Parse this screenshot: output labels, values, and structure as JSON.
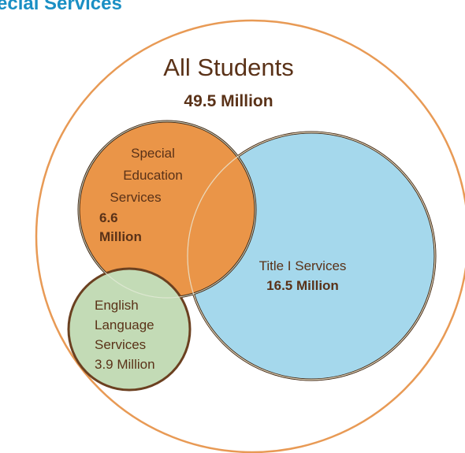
{
  "header": {
    "title": "ecial Services"
  },
  "diagram": {
    "all_students": {
      "label": "All Students",
      "value": "49.5 Million",
      "color": "#e89a55"
    },
    "special_education": {
      "label_lines": [
        "Special",
        "Education",
        "Services"
      ],
      "value_lines": [
        "6.6",
        "Million"
      ],
      "color": "#ea9548"
    },
    "title_one": {
      "label": "Title I Services",
      "value": "16.5 Million",
      "color": "#a5d8ec"
    },
    "english_language": {
      "label_lines": [
        "English",
        "Language",
        "Services"
      ],
      "value": "3.9 Million",
      "color": "#c3dbb6"
    },
    "outline_color": "#4a2a12"
  }
}
